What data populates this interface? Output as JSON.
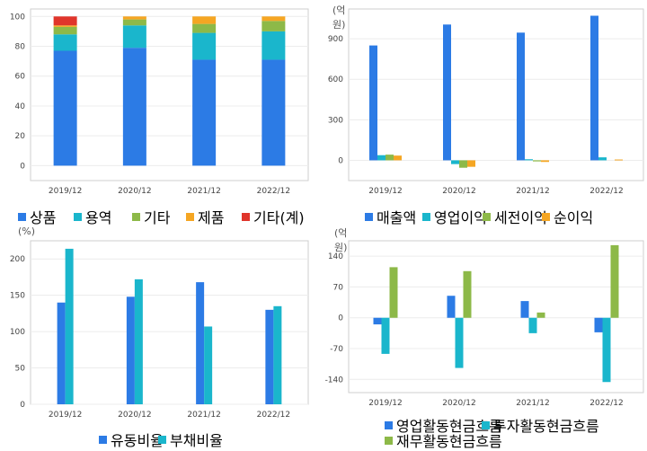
{
  "chart_data": [
    {
      "type": "bar",
      "stacked": true,
      "unit": "",
      "categories": [
        "2019/12",
        "2020/12",
        "2021/12",
        "2022/12"
      ],
      "ylim": [
        -10,
        105
      ],
      "yticks": [
        0,
        20,
        40,
        60,
        80,
        100
      ],
      "series": [
        {
          "name": "상품",
          "color": "#2c7be5",
          "values": [
            77,
            79,
            71,
            71
          ]
        },
        {
          "name": "용역",
          "color": "#1ab6cc",
          "values": [
            11,
            15,
            18,
            19
          ]
        },
        {
          "name": "기타",
          "color": "#8db948",
          "values": [
            5,
            4,
            6,
            7
          ]
        },
        {
          "name": "제품",
          "color": "#f5a623",
          "values": [
            1,
            2,
            5,
            3
          ]
        },
        {
          "name": "기타(계)",
          "color": "#e0352b",
          "values": [
            6,
            0,
            0,
            0
          ]
        }
      ]
    },
    {
      "type": "bar",
      "stacked": false,
      "unit": "(억원)",
      "categories": [
        "2019/12",
        "2020/12",
        "2021/12",
        "2022/12"
      ],
      "ylim": [
        -150,
        1120
      ],
      "yticks": [
        0,
        300,
        600,
        900
      ],
      "series": [
        {
          "name": "매출액",
          "color": "#2c7be5",
          "values": [
            850,
            1005,
            945,
            1070
          ]
        },
        {
          "name": "영업이익",
          "color": "#1ab6cc",
          "values": [
            38,
            -28,
            8,
            22
          ]
        },
        {
          "name": "세전이익",
          "color": "#8db948",
          "values": [
            42,
            -55,
            -8,
            0
          ]
        },
        {
          "name": "순이익",
          "color": "#f5a623",
          "values": [
            35,
            -48,
            -12,
            6
          ]
        }
      ]
    },
    {
      "type": "bar",
      "stacked": false,
      "unit": "(%)",
      "categories": [
        "2019/12",
        "2020/12",
        "2021/12",
        "2022/12"
      ],
      "ylim": [
        0,
        225
      ],
      "yticks": [
        0,
        50,
        100,
        150,
        200
      ],
      "series": [
        {
          "name": "유동비율",
          "color": "#2c7be5",
          "values": [
            140,
            148,
            168,
            130
          ]
        },
        {
          "name": "부채비율",
          "color": "#1ab6cc",
          "values": [
            214,
            172,
            107,
            135
          ]
        }
      ]
    },
    {
      "type": "bar",
      "stacked": false,
      "unit": "(억원)",
      "categories": [
        "2019/12",
        "2020/12",
        "2021/12",
        "2022/12"
      ],
      "ylim": [
        -170,
        175
      ],
      "yticks": [
        -140,
        -70,
        0,
        70,
        140
      ],
      "series": [
        {
          "name": "영업활동현금흐름",
          "color": "#2c7be5",
          "values": [
            -15,
            50,
            38,
            -33
          ]
        },
        {
          "name": "투자활동현금흐름",
          "color": "#1ab6cc",
          "values": [
            -82,
            -114,
            -35,
            -146
          ]
        },
        {
          "name": "재무활동현금흐름",
          "color": "#8db948",
          "values": [
            115,
            106,
            12,
            165
          ]
        }
      ]
    }
  ]
}
